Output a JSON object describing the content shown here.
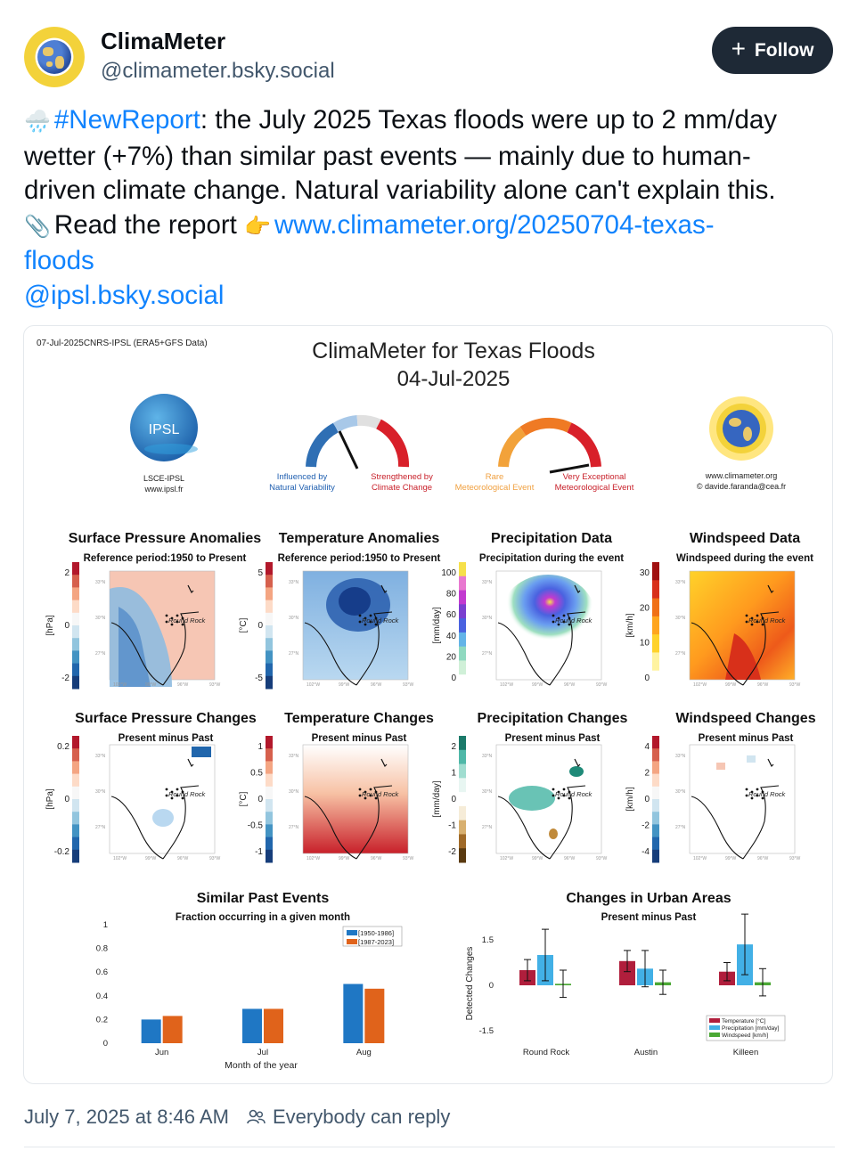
{
  "author": {
    "display_name": "ClimaMeter",
    "handle": "@climameter.bsky.social"
  },
  "follow_label": "Follow",
  "post": {
    "hashtag": "#NewReport",
    "line1_rest": ": the July 2025 Texas floods were up to 2 mm/day",
    "line2": "wetter (+7%) than similar past events — mainly due to human-",
    "line3": "driven climate change. Natural variability alone can't explain this.",
    "read_label": "Read the report",
    "link_line1": "www.climameter.org/20250704-texas-",
    "link_line2": "floods",
    "mention": "@ipsl.bsky.social",
    "emoji_cloud": "🌧️",
    "emoji_clip": "📎",
    "emoji_point": "👉"
  },
  "figure": {
    "header_left": "07-Jul-2025CNRS-IPSL (ERA5+GFS Data)",
    "title": "ClimaMeter for Texas Floods",
    "date": "04-Jul-2025",
    "ipsl_logo_text": "IPSL",
    "ipsl_line1": "LSCE-IPSL",
    "ipsl_line2": "www.ipsl.fr",
    "gauge1_left_l1": "Influenced by",
    "gauge1_left_l2": "Natural Variability",
    "gauge1_right_l1": "Strengthened by",
    "gauge1_right_l2": "Climate Change",
    "gauge2_left_l1": "Rare",
    "gauge2_left_l2": "Meteorological Event",
    "gauge2_right_l1": "Very Exceptional",
    "gauge2_right_l2": "Meteorological Event",
    "site_l1": "www.climameter.org",
    "site_l2": "© davide.faranda@cea.fr",
    "panels_row1": [
      {
        "title": "Surface Pressure Anomalies",
        "subtitle": "Reference period:1950 to Present",
        "unit": "[hPa]",
        "ticks": [
          "2",
          "0",
          "-2"
        ]
      },
      {
        "title": "Temperature Anomalies",
        "subtitle": "Reference period:1950 to Present",
        "unit": "[°C]",
        "ticks": [
          "5",
          "0",
          "-5"
        ]
      },
      {
        "title": "Precipitation Data",
        "subtitle": "Precipitation during the event",
        "unit": "[mm/day]",
        "ticks": [
          "100",
          "80",
          "60",
          "40",
          "20",
          "0"
        ]
      },
      {
        "title": "Windspeed Data",
        "subtitle": "Windspeed during the event",
        "unit": "[km/h]",
        "ticks": [
          "30",
          "20",
          "10",
          "0"
        ]
      }
    ],
    "panels_row2": [
      {
        "title": "Surface Pressure Changes",
        "subtitle": "Present minus Past",
        "unit": "[hPa]",
        "ticks": [
          "0.2",
          "0",
          "-0.2"
        ]
      },
      {
        "title": "Temperature Changes",
        "subtitle": "Present minus Past",
        "unit": "[°C]",
        "ticks": [
          "1",
          "0.5",
          "0",
          "-0.5",
          "-1"
        ]
      },
      {
        "title": "Precipitation Changes",
        "subtitle": "Present minus Past",
        "unit": "[mm/day]",
        "ticks": [
          "2",
          "1",
          "0",
          "-1",
          "-2"
        ]
      },
      {
        "title": "Windspeed Changes",
        "subtitle": "Present minus Past",
        "unit": "[km/h]",
        "ticks": [
          "4",
          "2",
          "0",
          "-2",
          "-4"
        ]
      }
    ],
    "map_label": "Round Rock",
    "lat_labels": [
      "33°N",
      "30°N",
      "27°N"
    ],
    "lon_labels": [
      "102°W",
      "99°W",
      "96°W",
      "93°W"
    ]
  },
  "chart_data": [
    {
      "type": "bar",
      "title": "Similar Past Events",
      "subtitle": "Fraction occurring in a given month",
      "xlabel": "Month of the year",
      "ylabel": "",
      "categories": [
        "Jun",
        "Jul",
        "Aug"
      ],
      "series": [
        {
          "name": "1950-1986",
          "values": [
            0.2,
            0.29,
            0.5
          ],
          "color": "#1f77c4"
        },
        {
          "name": "1987-2023",
          "values": [
            0.23,
            0.29,
            0.46
          ],
          "color": "#e0631b"
        }
      ],
      "ylim": [
        0,
        1
      ],
      "yticks": [
        "0",
        "0.2",
        "0.4",
        "0.6",
        "0.8",
        "1"
      ],
      "legend": "top-right"
    },
    {
      "type": "bar",
      "title": "Changes in Urban Areas",
      "subtitle": "Present minus Past",
      "xlabel": "",
      "ylabel": "Detected Changes",
      "categories": [
        "Round Rock",
        "Austin",
        "Killeen"
      ],
      "series": [
        {
          "name": "Temperature [°C]",
          "values": [
            0.5,
            0.8,
            0.45
          ],
          "err": [
            0.35,
            0.35,
            0.3
          ],
          "color": "#b01e3c"
        },
        {
          "name": "Precipitation [mm/day]",
          "values": [
            1.0,
            0.55,
            1.35
          ],
          "err": [
            0.85,
            0.6,
            1.0
          ],
          "color": "#42b0e6"
        },
        {
          "name": "Windspeed [km/h]",
          "values": [
            0.05,
            0.1,
            0.1
          ],
          "err": [
            0.45,
            0.4,
            0.45
          ],
          "color": "#4aa834"
        }
      ],
      "ylim": [
        -2,
        2
      ],
      "yticks": [
        "1.5",
        "0",
        "-1.5"
      ],
      "legend": "bottom-right"
    }
  ],
  "footer": {
    "timestamp": "July 7, 2025 at 8:46 AM",
    "reply": "Everybody can reply"
  }
}
